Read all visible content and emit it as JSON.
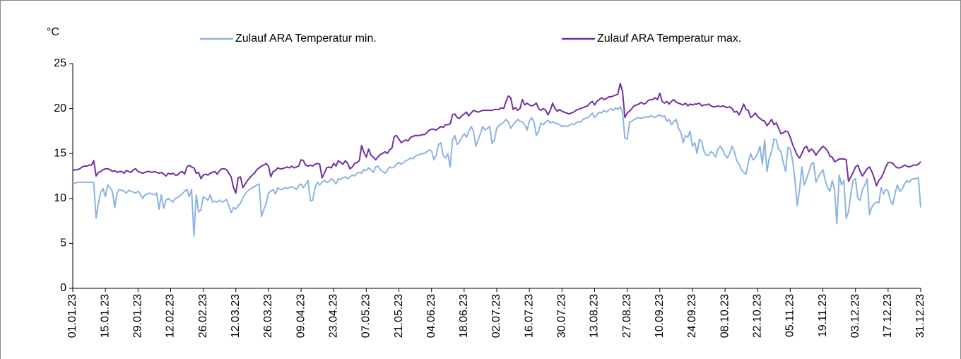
{
  "chart_data": {
    "type": "line",
    "y_label": "°C",
    "legend": "top",
    "grid": false,
    "ylim": [
      0,
      25
    ],
    "yticks": [
      0,
      5,
      10,
      15,
      20,
      25
    ],
    "categories": [
      "01.01.23",
      null,
      null,
      null,
      null,
      null,
      null,
      null,
      null,
      null,
      null,
      null,
      null,
      null,
      "15.01.23",
      null,
      null,
      null,
      null,
      null,
      null,
      null,
      null,
      null,
      null,
      null,
      null,
      null,
      "29.01.23",
      null,
      null,
      null,
      null,
      null,
      null,
      null,
      null,
      null,
      null,
      null,
      null,
      null,
      "12.02.23",
      null,
      null,
      null,
      null,
      null,
      null,
      null,
      null,
      null,
      null,
      null,
      null,
      null,
      "26.02.23",
      null,
      null,
      null,
      null,
      null,
      null,
      null,
      null,
      null,
      null,
      null,
      null,
      null,
      "12.03.23",
      null,
      null,
      null,
      null,
      null,
      null,
      null,
      null,
      null,
      null,
      null,
      null,
      null,
      "26.03.23",
      null,
      null,
      null,
      null,
      null,
      null,
      null,
      null,
      null,
      null,
      null,
      null,
      null,
      "09.04.23",
      null,
      null,
      null,
      null,
      null,
      null,
      null,
      null,
      null,
      null,
      null,
      null,
      null,
      "23.04.23",
      null,
      null,
      null,
      null,
      null,
      null,
      null,
      null,
      null,
      null,
      null,
      null,
      null,
      "07.05.23",
      null,
      null,
      null,
      null,
      null,
      null,
      null,
      null,
      null,
      null,
      null,
      null,
      null,
      "21.05.23",
      null,
      null,
      null,
      null,
      null,
      null,
      null,
      null,
      null,
      null,
      null,
      null,
      null,
      "04.06.23",
      null,
      null,
      null,
      null,
      null,
      null,
      null,
      null,
      null,
      null,
      null,
      null,
      null,
      "18.06.23",
      null,
      null,
      null,
      null,
      null,
      null,
      null,
      null,
      null,
      null,
      null,
      null,
      null,
      "02.07.23",
      null,
      null,
      null,
      null,
      null,
      null,
      null,
      null,
      null,
      null,
      null,
      null,
      null,
      "16.07.23",
      null,
      null,
      null,
      null,
      null,
      null,
      null,
      null,
      null,
      null,
      null,
      null,
      null,
      "30.07.23",
      null,
      null,
      null,
      null,
      null,
      null,
      null,
      null,
      null,
      null,
      null,
      null,
      null,
      "13.08.23",
      null,
      null,
      null,
      null,
      null,
      null,
      null,
      null,
      null,
      null,
      null,
      null,
      null,
      "27.08.23",
      null,
      null,
      null,
      null,
      null,
      null,
      null,
      null,
      null,
      null,
      null,
      null,
      null,
      "10.09.23",
      null,
      null,
      null,
      null,
      null,
      null,
      null,
      null,
      null,
      null,
      null,
      null,
      null,
      "24.09.23",
      null,
      null,
      null,
      null,
      null,
      null,
      null,
      null,
      null,
      null,
      null,
      null,
      null,
      "08.10.23",
      null,
      null,
      null,
      null,
      null,
      null,
      null,
      null,
      null,
      null,
      null,
      null,
      null,
      "22.10.23",
      null,
      null,
      null,
      null,
      null,
      null,
      null,
      null,
      null,
      null,
      null,
      null,
      null,
      "05.11.23",
      null,
      null,
      null,
      null,
      null,
      null,
      null,
      null,
      null,
      null,
      null,
      null,
      null,
      "19.11.23",
      null,
      null,
      null,
      null,
      null,
      null,
      null,
      null,
      null,
      null,
      null,
      null,
      null,
      "03.12.23",
      null,
      null,
      null,
      null,
      null,
      null,
      null,
      null,
      null,
      null,
      null,
      null,
      null,
      "17.12.23",
      null,
      null,
      null,
      null,
      null,
      null,
      null,
      null,
      null,
      null,
      null,
      null,
      null,
      "31.12.23"
    ],
    "series": [
      {
        "name": "Zulauf ARA Temperatur min.",
        "color": "#8db4e2",
        "values": [
          11.6,
          11.7,
          11.8,
          11.8,
          11.8,
          11.8,
          11.8,
          11.8,
          11.8,
          11.8,
          7.8,
          9.5,
          10.7,
          11.1,
          10.2,
          11.5,
          11.2,
          10.8,
          9.0,
          10.6,
          11.0,
          10.9,
          10.8,
          10.6,
          10.9,
          10.8,
          10.7,
          10.6,
          10.8,
          10.5,
          10.0,
          10.4,
          10.5,
          10.6,
          10.5,
          10.4,
          10.6,
          8.8,
          10.4,
          8.9,
          9.8,
          10.0,
          9.8,
          9.6,
          10.0,
          10.1,
          10.3,
          10.5,
          10.8,
          11.0,
          10.2,
          11.0,
          5.8,
          10.4,
          8.5,
          8.7,
          10.2,
          10.0,
          9.8,
          10.4,
          9.6,
          9.7,
          9.6,
          9.8,
          9.6,
          9.7,
          9.9,
          9.2,
          8.4,
          9.0,
          8.8,
          9.2,
          9.5,
          10.0,
          10.5,
          10.8,
          11.0,
          11.2,
          11.3,
          11.5,
          11.6,
          8.0,
          8.8,
          9.4,
          10.6,
          10.8,
          11.0,
          10.5,
          11.2,
          11.0,
          11.0,
          11.2,
          11.1,
          11.2,
          11.3,
          11.2,
          11.0,
          11.4,
          11.6,
          11.2,
          11.6,
          12.0,
          9.7,
          9.8,
          11.2,
          11.8,
          11.5,
          11.8,
          12.0,
          11.8,
          11.9,
          12.2,
          12.0,
          11.6,
          12.2,
          12.1,
          12.3,
          12.4,
          12.2,
          12.4,
          12.6,
          12.5,
          12.8,
          12.9,
          12.8,
          13.2,
          13.1,
          13.4,
          13.2,
          12.9,
          13.5,
          13.6,
          13.2,
          13.0,
          12.8,
          13.1,
          13.5,
          13.4,
          13.5,
          13.8,
          14.0,
          13.8,
          14.0,
          14.2,
          14.3,
          14.5,
          14.4,
          14.7,
          14.8,
          14.9,
          15.0,
          15.0,
          15.2,
          15.4,
          15.3,
          14.3,
          14.8,
          16.0,
          16.2,
          14.8,
          14.5,
          15.0,
          13.5,
          16.5,
          17.0,
          16.0,
          16.3,
          16.8,
          17.2,
          16.8,
          17.5,
          18.0,
          17.5,
          15.8,
          16.5,
          17.2,
          18.0,
          17.6,
          17.8,
          18.0,
          16.1,
          16.5,
          17.8,
          18.1,
          18.3,
          18.5,
          18.8,
          18.5,
          17.8,
          18.2,
          18.5,
          18.8,
          18.6,
          18.5,
          18.2,
          17.6,
          18.6,
          19.0,
          18.5,
          17.0,
          17.5,
          18.4,
          18.2,
          18.5,
          18.7,
          18.4,
          18.5,
          18.4,
          18.3,
          18.2,
          18.0,
          18.1,
          18.0,
          18.1,
          18.3,
          18.2,
          18.4,
          18.5,
          18.5,
          18.8,
          18.9,
          19.0,
          19.2,
          19.5,
          19.0,
          19.3,
          19.6,
          19.5,
          19.8,
          19.6,
          19.8,
          20.0,
          19.8,
          20.1,
          19.9,
          20.2,
          19.6,
          16.7,
          16.6,
          18.5,
          18.6,
          18.8,
          18.9,
          19.0,
          18.9,
          19.0,
          19.1,
          19.0,
          19.2,
          19.1,
          19.0,
          19.2,
          19.3,
          19.1,
          19.2,
          18.6,
          18.8,
          18.2,
          18.5,
          18.8,
          17.8,
          17.4,
          16.2,
          17.0,
          16.8,
          17.5,
          15.8,
          16.2,
          15.0,
          16.6,
          16.3,
          15.2,
          14.8,
          14.8,
          15.2,
          15.0,
          14.6,
          15.5,
          15.8,
          15.4,
          14.8,
          14.5,
          15.0,
          15.8,
          15.2,
          14.2,
          13.8,
          13.2,
          12.9,
          12.7,
          14.0,
          15.0,
          14.3,
          14.5,
          15.0,
          15.8,
          13.8,
          16.5,
          13.0,
          14.5,
          15.2,
          16.6,
          16.5,
          15.5,
          15.2,
          14.0,
          13.0,
          15.7,
          15.5,
          14.2,
          12.1,
          9.2,
          11.0,
          13.5,
          11.5,
          12.2,
          13.0,
          13.8,
          14.0,
          11.8,
          12.4,
          12.8,
          13.2,
          12.0,
          11.2,
          10.8,
          12.0,
          11.0,
          7.2,
          12.6,
          11.5,
          12.0,
          7.8,
          8.5,
          10.5,
          12.0,
          12.2,
          10.0,
          9.8,
          11.0,
          11.5,
          12.2,
          8.2,
          9.0,
          9.4,
          9.6,
          9.5,
          11.2,
          10.5,
          11.0,
          10.8,
          9.8,
          9.3,
          10.6,
          11.5,
          10.8,
          11.0,
          11.6,
          12.0,
          11.8,
          12.1,
          12.2,
          12.2,
          12.3,
          9.0
        ]
      },
      {
        "name": "Zulauf ARA Temperatur max.",
        "color": "#7030a0",
        "values": [
          13.1,
          13.2,
          13.2,
          13.3,
          13.5,
          13.6,
          13.6,
          13.7,
          13.7,
          14.2,
          12.5,
          12.9,
          13.0,
          13.2,
          13.3,
          13.3,
          13.2,
          13.0,
          13.1,
          12.9,
          13.0,
          13.0,
          12.8,
          13.1,
          13.0,
          12.9,
          13.2,
          13.3,
          13.0,
          12.9,
          12.8,
          12.9,
          13.0,
          13.0,
          12.9,
          13.0,
          12.9,
          12.8,
          12.9,
          12.7,
          12.5,
          12.8,
          12.7,
          12.8,
          12.6,
          12.6,
          12.9,
          13.0,
          12.7,
          13.5,
          13.7,
          13.5,
          13.4,
          12.8,
          12.9,
          12.2,
          12.6,
          12.7,
          12.6,
          12.8,
          12.9,
          13.0,
          12.7,
          13.1,
          13.3,
          13.3,
          13.2,
          12.8,
          12.4,
          11.2,
          10.6,
          12.3,
          12.4,
          11.2,
          11.6,
          12.0,
          12.3,
          12.6,
          12.8,
          13.2,
          13.4,
          13.6,
          13.7,
          13.9,
          13.6,
          12.4,
          13.0,
          13.1,
          13.4,
          13.3,
          13.3,
          13.4,
          13.5,
          13.4,
          13.6,
          13.4,
          13.5,
          13.6,
          14.3,
          14.2,
          13.7,
          13.6,
          13.7,
          13.6,
          13.8,
          13.9,
          13.8,
          12.3,
          12.8,
          13.4,
          13.5,
          13.4,
          13.9,
          13.6,
          14.2,
          14.0,
          13.8,
          14.2,
          13.9,
          13.3,
          13.5,
          13.9,
          14.0,
          14.2,
          15.9,
          15.1,
          14.6,
          15.5,
          14.8,
          14.6,
          14.3,
          14.6,
          14.9,
          15.0,
          15.2,
          15.0,
          15.4,
          15.6,
          16.9,
          17.0,
          16.6,
          16.2,
          16.4,
          16.5,
          16.4,
          16.8,
          16.9,
          17.0,
          17.0,
          17.0,
          17.1,
          17.1,
          17.3,
          17.6,
          17.7,
          17.7,
          17.6,
          17.8,
          18.0,
          17.9,
          18.2,
          18.2,
          18.3,
          19.3,
          19.4,
          19.0,
          18.9,
          19.2,
          19.4,
          19.6,
          19.2,
          19.5,
          19.8,
          19.7,
          19.6,
          19.7,
          19.8,
          19.8,
          19.8,
          19.8,
          19.8,
          19.9,
          19.9,
          19.9,
          20.1,
          20.0,
          20.8,
          21.4,
          21.2,
          19.9,
          20.1,
          19.8,
          20.0,
          21.0,
          20.4,
          20.6,
          20.4,
          20.3,
          20.4,
          20.6,
          20.0,
          19.8,
          20.0,
          19.8,
          19.3,
          19.8,
          20.6,
          20.0,
          19.7,
          19.9,
          19.7,
          19.6,
          19.5,
          19.4,
          19.5,
          19.6,
          19.8,
          19.9,
          20.0,
          20.1,
          20.2,
          20.3,
          20.6,
          20.8,
          20.4,
          20.8,
          21.0,
          21.2,
          21.0,
          21.1,
          21.3,
          21.3,
          21.4,
          21.5,
          21.6,
          22.8,
          21.9,
          19.0,
          19.5,
          19.7,
          20.0,
          20.3,
          20.4,
          20.5,
          20.7,
          20.5,
          20.6,
          20.9,
          21.0,
          21.0,
          21.2,
          21.0,
          21.7,
          20.8,
          20.6,
          20.8,
          20.5,
          20.8,
          21.0,
          20.7,
          20.6,
          20.5,
          20.4,
          20.6,
          20.3,
          20.5,
          20.4,
          20.5,
          20.5,
          20.6,
          20.3,
          20.4,
          20.4,
          20.5,
          20.3,
          20.2,
          20.2,
          20.3,
          20.2,
          20.3,
          20.2,
          20.1,
          20.2,
          20.0,
          19.6,
          19.7,
          19.3,
          19.8,
          20.5,
          19.9,
          19.8,
          19.0,
          19.2,
          19.5,
          19.1,
          18.9,
          18.7,
          18.6,
          18.1,
          18.4,
          18.8,
          18.2,
          18.4,
          17.8,
          17.2,
          17.3,
          17.5,
          17.4,
          16.8,
          16.0,
          15.4,
          14.8,
          14.5,
          15.0,
          15.6,
          15.8,
          15.2,
          15.5,
          15.3,
          14.8,
          15.2,
          15.5,
          15.8,
          15.6,
          15.3,
          14.7,
          14.6,
          14.1,
          14.2,
          14.4,
          14.4,
          14.4,
          14.3,
          11.9,
          12.4,
          12.9,
          13.5,
          13.7,
          13.0,
          12.5,
          12.9,
          13.3,
          13.5,
          13.0,
          12.3,
          11.4,
          12.0,
          12.3,
          12.8,
          13.5,
          14.0,
          14.0,
          13.9,
          13.6,
          13.4,
          13.4,
          13.5,
          13.7,
          13.6,
          13.5,
          13.6,
          13.7,
          13.7,
          13.8,
          14.1
        ]
      }
    ]
  }
}
